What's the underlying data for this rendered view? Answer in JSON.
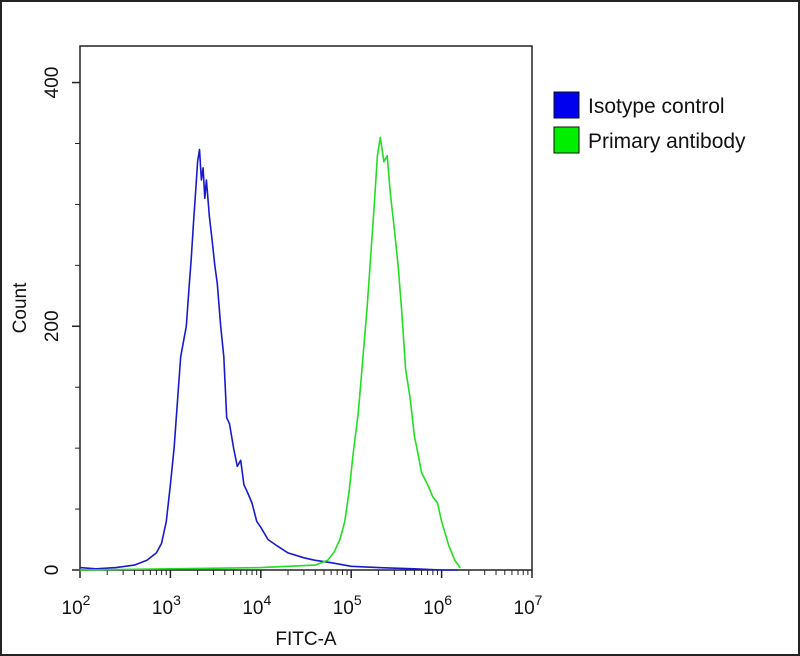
{
  "chart_data": {
    "type": "line",
    "xlabel": "FITC-A",
    "ylabel": "Count",
    "x_scale": "log",
    "xlim": [
      100,
      10000000
    ],
    "ylim": [
      0,
      430
    ],
    "x_ticks": [
      {
        "value": 100,
        "base": "10",
        "exp": "2"
      },
      {
        "value": 1000,
        "base": "10",
        "exp": "3"
      },
      {
        "value": 10000,
        "base": "10",
        "exp": "4"
      },
      {
        "value": 100000,
        "base": "10",
        "exp": "5"
      },
      {
        "value": 1000000,
        "base": "10",
        "exp": "6"
      },
      {
        "value": 10000000,
        "base": "10",
        "exp": "7"
      }
    ],
    "y_ticks": [
      0,
      200,
      400
    ],
    "legend": {
      "position": "top-right"
    },
    "series": [
      {
        "name": "Isotype control",
        "color": "#1a1acc",
        "swatch_color": "#0000ee",
        "x": [
          100,
          150,
          250,
          400,
          550,
          700,
          800,
          900,
          1000,
          1100,
          1200,
          1300,
          1400,
          1500,
          1600,
          1700,
          1800,
          1900,
          2000,
          2100,
          2200,
          2300,
          2400,
          2500,
          2700,
          2900,
          3100,
          3300,
          3600,
          3900,
          4200,
          4500,
          5000,
          5500,
          6000,
          6500,
          7000,
          8000,
          9000,
          10000,
          12000,
          15000,
          20000,
          30000,
          40000,
          60000,
          100000,
          200000,
          500000,
          1000000,
          1500000
        ],
        "y": [
          2,
          1,
          2,
          4,
          8,
          14,
          22,
          40,
          70,
          100,
          140,
          175,
          188,
          200,
          230,
          255,
          285,
          310,
          335,
          345,
          320,
          330,
          305,
          320,
          290,
          270,
          250,
          235,
          200,
          175,
          125,
          120,
          100,
          85,
          90,
          70,
          65,
          55,
          40,
          35,
          25,
          20,
          14,
          10,
          8,
          6,
          3,
          2,
          1,
          0,
          0
        ]
      },
      {
        "name": "Primary antibody",
        "color": "#22dd22",
        "swatch_color": "#00ee00",
        "x": [
          100,
          1000,
          10000,
          40000,
          55000,
          65000,
          75000,
          85000,
          95000,
          105000,
          120000,
          135000,
          150000,
          165000,
          180000,
          195000,
          210000,
          230000,
          250000,
          270000,
          300000,
          330000,
          360000,
          400000,
          450000,
          500000,
          550000,
          600000,
          700000,
          800000,
          900000,
          1000000,
          1200000,
          1400000,
          1600000
        ],
        "y": [
          0,
          1,
          2,
          4,
          8,
          15,
          25,
          40,
          65,
          95,
          130,
          175,
          215,
          260,
          300,
          340,
          355,
          335,
          340,
          310,
          280,
          250,
          215,
          165,
          140,
          110,
          95,
          80,
          70,
          60,
          55,
          40,
          20,
          8,
          2
        ]
      }
    ]
  }
}
